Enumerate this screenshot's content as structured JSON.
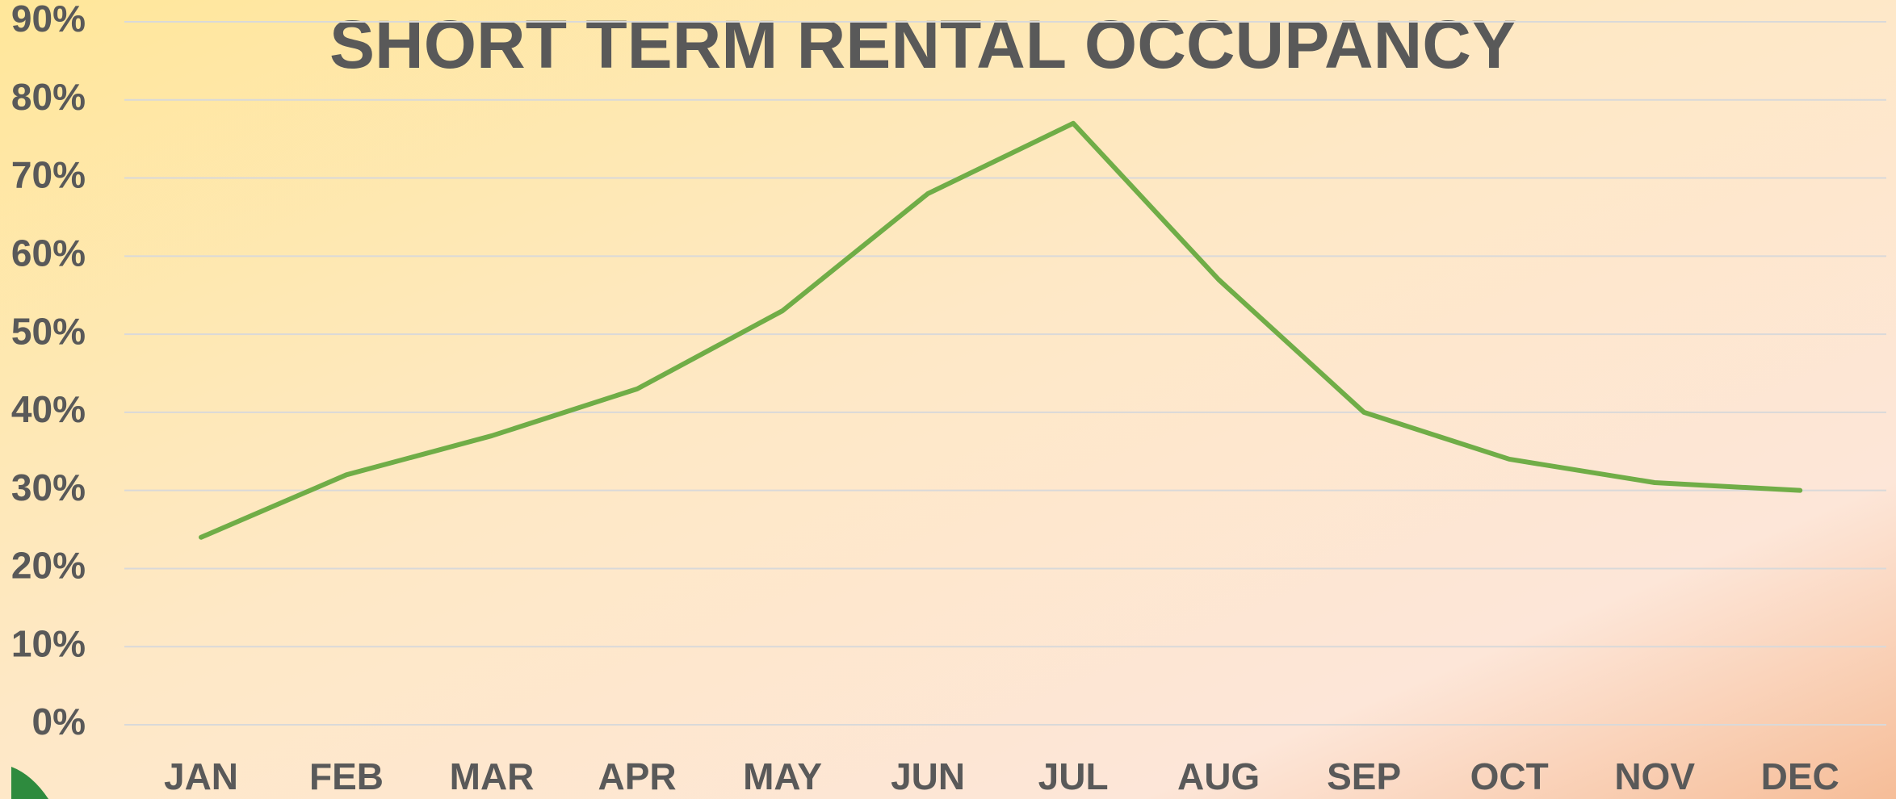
{
  "chart_data": {
    "type": "line",
    "title": "SHORT TERM RENTAL OCCUPANCY",
    "categories": [
      "JAN",
      "FEB",
      "MAR",
      "APR",
      "MAY",
      "JUN",
      "JUL",
      "AUG",
      "SEP",
      "OCT",
      "NOV",
      "DEC"
    ],
    "values": [
      24,
      32,
      37,
      43,
      53,
      68,
      77,
      57,
      40,
      34,
      31,
      30
    ],
    "color": "#70ad47",
    "ylim": [
      0,
      90
    ],
    "yticks": [
      {
        "value": 0,
        "label": "0%"
      },
      {
        "value": 10,
        "label": "10%"
      },
      {
        "value": 20,
        "label": "20%"
      },
      {
        "value": 30,
        "label": "30%"
      },
      {
        "value": 40,
        "label": "40%"
      },
      {
        "value": 50,
        "label": "50%"
      },
      {
        "value": 60,
        "label": "60%"
      },
      {
        "value": 70,
        "label": "70%"
      },
      {
        "value": 80,
        "label": "80%"
      },
      {
        "value": 90,
        "label": "90%"
      }
    ],
    "grid": true
  }
}
